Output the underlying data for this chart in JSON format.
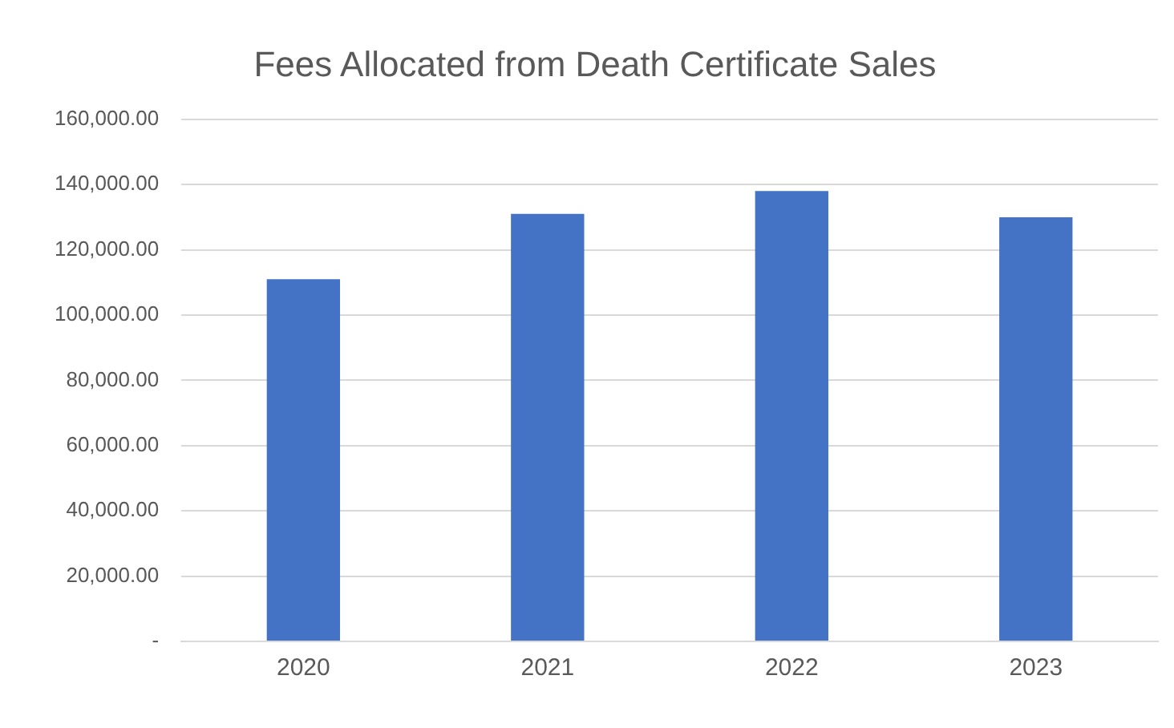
{
  "chart_data": {
    "type": "bar",
    "title": "Fees Allocated from Death Certificate Sales",
    "categories": [
      "2020",
      "2021",
      "2022",
      "2023"
    ],
    "values": [
      111000,
      131000,
      138000,
      130000
    ],
    "color": "#4472c4",
    "ylim": [
      0,
      160000
    ],
    "yticks": [
      {
        "value": 0,
        "label": "-"
      },
      {
        "value": 20000,
        "label": "20,000.00"
      },
      {
        "value": 40000,
        "label": "40,000.00"
      },
      {
        "value": 60000,
        "label": "60,000.00"
      },
      {
        "value": 80000,
        "label": "80,000.00"
      },
      {
        "value": 100000,
        "label": "100,000.00"
      },
      {
        "value": 120000,
        "label": "120,000.00"
      },
      {
        "value": 140000,
        "label": "140,000.00"
      },
      {
        "value": 160000,
        "label": "160,000.00"
      }
    ],
    "grid": "y",
    "legend": false
  }
}
